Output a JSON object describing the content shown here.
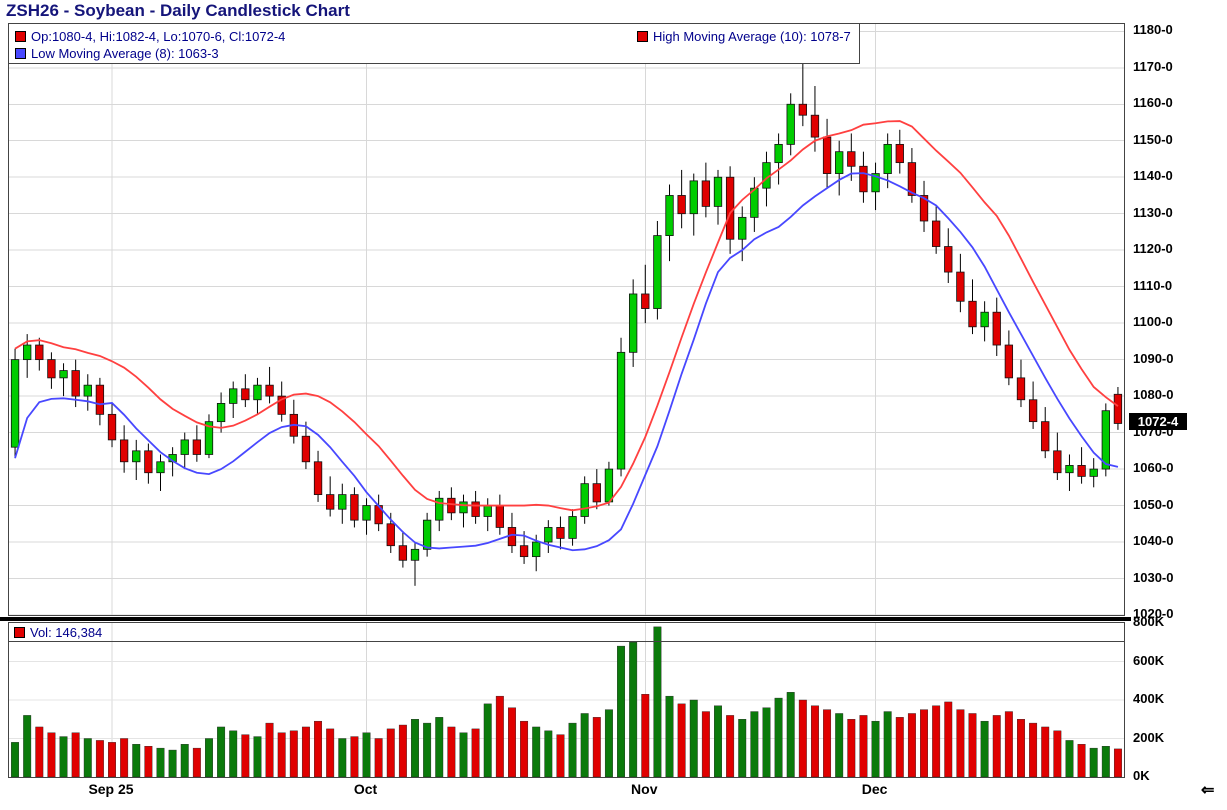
{
  "title": "ZSH26 - Soybean - Daily Candlestick Chart",
  "legend": {
    "ohlc": "Op:1080-4, Hi:1082-4, Lo:1070-6, Cl:1072-4",
    "high_ma": "High Moving Average (10): 1078-7",
    "low_ma": "Low Moving Average (8): 1063-3",
    "volume": "Vol: 146,384"
  },
  "scroll_arrow": "⇐",
  "colors": {
    "title": "#15157a",
    "legend_text": "#00008b",
    "candle_up": "#00cc00",
    "candle_down": "#e00000",
    "ma_high": "#ff4040",
    "ma_low": "#4848ff",
    "vol_up": "#0b7a0b",
    "vol_down": "#e00000",
    "grid": "#d8d8d8",
    "last_price_bg": "#000000",
    "last_price_fg": "#ffffff"
  },
  "chart_data": {
    "type": "candlestick+volume",
    "title": "ZSH26 - Soybean - Daily Candlestick Chart",
    "ylim": [
      1020,
      1182
    ],
    "volume_ylim_k": [
      0,
      800
    ],
    "high_ma_period": 10,
    "low_ma_period": 8,
    "last_price": {
      "label": "1072-4",
      "value": 1072.5
    },
    "price_axis_labels": [
      {
        "label": "1180-0",
        "value": 1180
      },
      {
        "label": "1170-0",
        "value": 1170
      },
      {
        "label": "1160-0",
        "value": 1160
      },
      {
        "label": "1150-0",
        "value": 1150
      },
      {
        "label": "1140-0",
        "value": 1140
      },
      {
        "label": "1130-0",
        "value": 1130
      },
      {
        "label": "1120-0",
        "value": 1120
      },
      {
        "label": "1110-0",
        "value": 1110
      },
      {
        "label": "1100-0",
        "value": 1100
      },
      {
        "label": "1090-0",
        "value": 1090
      },
      {
        "label": "1080-0",
        "value": 1080
      },
      {
        "label": "1070-0",
        "value": 1070
      },
      {
        "label": "1060-0",
        "value": 1060
      },
      {
        "label": "1050-0",
        "value": 1050
      },
      {
        "label": "1040-0",
        "value": 1040
      },
      {
        "label": "1030-0",
        "value": 1030
      },
      {
        "label": "1020-0",
        "value": 1020
      }
    ],
    "volume_axis_labels": [
      {
        "label": "800K",
        "value": 800
      },
      {
        "label": "600K",
        "value": 600
      },
      {
        "label": "400K",
        "value": 400
      },
      {
        "label": "200K",
        "value": 200
      },
      {
        "label": "0K",
        "value": 0
      }
    ],
    "x_labels": [
      {
        "label": "Sep 25",
        "index": 8
      },
      {
        "label": "Oct",
        "index": 29
      },
      {
        "label": "Nov",
        "index": 52
      },
      {
        "label": "Dec",
        "index": 71
      }
    ],
    "candles_format": [
      "open",
      "high",
      "low",
      "close",
      "volume_k"
    ],
    "candles": [
      [
        1066,
        1093,
        1063,
        1090,
        180
      ],
      [
        1090,
        1097,
        1085,
        1094,
        320
      ],
      [
        1094,
        1096,
        1087,
        1090,
        260
      ],
      [
        1090,
        1092,
        1082,
        1085,
        230
      ],
      [
        1085,
        1089,
        1080,
        1087,
        210
      ],
      [
        1087,
        1090,
        1077,
        1080,
        230
      ],
      [
        1080,
        1086,
        1076,
        1083,
        200
      ],
      [
        1083,
        1085,
        1072,
        1075,
        190
      ],
      [
        1075,
        1078,
        1066,
        1068,
        180
      ],
      [
        1068,
        1072,
        1059,
        1062,
        200
      ],
      [
        1062,
        1068,
        1057,
        1065,
        170
      ],
      [
        1065,
        1067,
        1056,
        1059,
        160
      ],
      [
        1059,
        1064,
        1054,
        1062,
        150
      ],
      [
        1062,
        1066,
        1058,
        1064,
        140
      ],
      [
        1064,
        1070,
        1060,
        1068,
        170
      ],
      [
        1068,
        1072,
        1062,
        1064,
        150
      ],
      [
        1064,
        1075,
        1063,
        1073,
        200
      ],
      [
        1073,
        1081,
        1070,
        1078,
        260
      ],
      [
        1078,
        1084,
        1074,
        1082,
        240
      ],
      [
        1082,
        1086,
        1077,
        1079,
        220
      ],
      [
        1079,
        1085,
        1075,
        1083,
        210
      ],
      [
        1083,
        1088,
        1078,
        1080,
        280
      ],
      [
        1080,
        1084,
        1073,
        1075,
        230
      ],
      [
        1075,
        1079,
        1067,
        1069,
        240
      ],
      [
        1069,
        1073,
        1060,
        1062,
        260
      ],
      [
        1062,
        1065,
        1051,
        1053,
        290
      ],
      [
        1053,
        1058,
        1047,
        1049,
        250
      ],
      [
        1049,
        1056,
        1045,
        1053,
        200
      ],
      [
        1053,
        1055,
        1044,
        1046,
        210
      ],
      [
        1046,
        1052,
        1042,
        1050,
        230
      ],
      [
        1050,
        1053,
        1043,
        1045,
        200
      ],
      [
        1045,
        1048,
        1037,
        1039,
        250
      ],
      [
        1039,
        1043,
        1033,
        1035,
        270
      ],
      [
        1035,
        1040,
        1028,
        1038,
        300
      ],
      [
        1038,
        1048,
        1036,
        1046,
        280
      ],
      [
        1046,
        1054,
        1043,
        1052,
        310
      ],
      [
        1052,
        1055,
        1046,
        1048,
        260
      ],
      [
        1048,
        1053,
        1044,
        1051,
        230
      ],
      [
        1051,
        1054,
        1045,
        1047,
        250
      ],
      [
        1047,
        1052,
        1043,
        1050,
        380
      ],
      [
        1050,
        1053,
        1042,
        1044,
        420
      ],
      [
        1044,
        1048,
        1037,
        1039,
        360
      ],
      [
        1039,
        1043,
        1034,
        1036,
        290
      ],
      [
        1036,
        1042,
        1032,
        1040,
        260
      ],
      [
        1040,
        1046,
        1037,
        1044,
        240
      ],
      [
        1044,
        1047,
        1038,
        1041,
        220
      ],
      [
        1041,
        1049,
        1039,
        1047,
        280
      ],
      [
        1047,
        1058,
        1045,
        1056,
        330
      ],
      [
        1056,
        1060,
        1049,
        1051,
        310
      ],
      [
        1051,
        1062,
        1050,
        1060,
        350
      ],
      [
        1060,
        1096,
        1058,
        1092,
        680
      ],
      [
        1092,
        1112,
        1088,
        1108,
        700
      ],
      [
        1108,
        1116,
        1100,
        1104,
        430
      ],
      [
        1104,
        1128,
        1101,
        1124,
        780
      ],
      [
        1124,
        1138,
        1117,
        1135,
        420
      ],
      [
        1135,
        1142,
        1126,
        1130,
        380
      ],
      [
        1130,
        1141,
        1124,
        1139,
        400
      ],
      [
        1139,
        1144,
        1129,
        1132,
        340
      ],
      [
        1132,
        1142,
        1127,
        1140,
        370
      ],
      [
        1140,
        1143,
        1119,
        1123,
        320
      ],
      [
        1123,
        1132,
        1117,
        1129,
        300
      ],
      [
        1129,
        1140,
        1125,
        1137,
        340
      ],
      [
        1137,
        1147,
        1132,
        1144,
        360
      ],
      [
        1144,
        1152,
        1138,
        1149,
        410
      ],
      [
        1149,
        1163,
        1146,
        1160,
        440
      ],
      [
        1160,
        1172,
        1154,
        1157,
        400
      ],
      [
        1157,
        1165,
        1147,
        1151,
        370
      ],
      [
        1151,
        1156,
        1137,
        1141,
        350
      ],
      [
        1141,
        1150,
        1135,
        1147,
        330
      ],
      [
        1147,
        1152,
        1139,
        1143,
        300
      ],
      [
        1143,
        1147,
        1133,
        1136,
        320
      ],
      [
        1136,
        1144,
        1131,
        1141,
        290
      ],
      [
        1141,
        1152,
        1137,
        1149,
        340
      ],
      [
        1149,
        1153,
        1141,
        1144,
        310
      ],
      [
        1144,
        1148,
        1133,
        1135,
        330
      ],
      [
        1135,
        1139,
        1125,
        1128,
        350
      ],
      [
        1128,
        1132,
        1119,
        1121,
        370
      ],
      [
        1121,
        1126,
        1111,
        1114,
        390
      ],
      [
        1114,
        1119,
        1103,
        1106,
        350
      ],
      [
        1106,
        1112,
        1097,
        1099,
        330
      ],
      [
        1099,
        1106,
        1095,
        1103,
        290
      ],
      [
        1103,
        1107,
        1091,
        1094,
        320
      ],
      [
        1094,
        1098,
        1083,
        1085,
        340
      ],
      [
        1085,
        1090,
        1077,
        1079,
        300
      ],
      [
        1079,
        1084,
        1071,
        1073,
        280
      ],
      [
        1073,
        1077,
        1063,
        1065,
        260
      ],
      [
        1065,
        1070,
        1057,
        1059,
        240
      ],
      [
        1059,
        1064,
        1054,
        1061,
        190
      ],
      [
        1061,
        1066,
        1056,
        1058,
        170
      ],
      [
        1058,
        1063,
        1055,
        1060,
        150
      ],
      [
        1060,
        1078,
        1058,
        1076,
        160
      ],
      [
        1080.5,
        1082.5,
        1070.75,
        1072.5,
        146
      ]
    ]
  }
}
